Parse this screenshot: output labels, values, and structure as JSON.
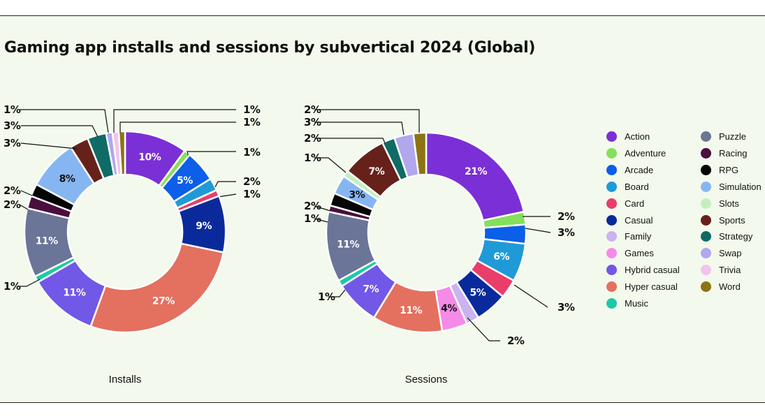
{
  "title": "Gaming app installs and sessions by subvertical 2024 (Global)",
  "legend": [
    {
      "name": "Action",
      "color": "#7b2fd6"
    },
    {
      "name": "Adventure",
      "color": "#84e05a"
    },
    {
      "name": "Arcade",
      "color": "#0b5fe8"
    },
    {
      "name": "Board",
      "color": "#1f9ad6"
    },
    {
      "name": "Card",
      "color": "#ea3d6a"
    },
    {
      "name": "Casual",
      "color": "#0a2a9c"
    },
    {
      "name": "Family",
      "color": "#c9b3f0"
    },
    {
      "name": "Games",
      "color": "#f58ae8"
    },
    {
      "name": "Hybrid casual",
      "color": "#7158e6"
    },
    {
      "name": "Hyper casual",
      "color": "#e4705f"
    },
    {
      "name": "Music",
      "color": "#1cc9a8"
    },
    {
      "name": "Puzzle",
      "color": "#6a7597"
    },
    {
      "name": "Racing",
      "color": "#4a0f3e"
    },
    {
      "name": "RPG",
      "color": "#050505"
    },
    {
      "name": "Simulation",
      "color": "#86b6f2"
    },
    {
      "name": "Slots",
      "color": "#c3efbf"
    },
    {
      "name": "Sports",
      "color": "#66211b"
    },
    {
      "name": "Strategy",
      "color": "#0f6b66"
    },
    {
      "name": "Swap",
      "color": "#b1a7ed"
    },
    {
      "name": "Trivia",
      "color": "#f3c2ee"
    },
    {
      "name": "Word",
      "color": "#8c7313"
    }
  ],
  "chart_data": [
    {
      "type": "pie",
      "caption": "Installs",
      "categories": [
        "Action",
        "Adventure",
        "Arcade",
        "Board",
        "Card",
        "Casual",
        "Hyper casual",
        "Hybrid casual",
        "Music",
        "Puzzle",
        "Racing",
        "RPG",
        "Simulation",
        "Sports",
        "Strategy",
        "Swap",
        "Trivia",
        "Word"
      ],
      "values": [
        10,
        1,
        5,
        2,
        1,
        9,
        27,
        11,
        1,
        11,
        2,
        2,
        8,
        3,
        3,
        1,
        1,
        1
      ],
      "labels": [
        "10%",
        "1%",
        "5%",
        "2%",
        "1%",
        "9%",
        "27%",
        "11%",
        "1%",
        "11%",
        "2%",
        "2%",
        "8%",
        "3%",
        "3%",
        "1%",
        "1%",
        "1%"
      ]
    },
    {
      "type": "pie",
      "caption": "Sessions",
      "categories": [
        "Action",
        "Adventure",
        "Arcade",
        "Board",
        "Card",
        "Casual",
        "Family",
        "Games",
        "Hyper casual",
        "Hybrid casual",
        "Music",
        "Puzzle",
        "Racing",
        "RPG",
        "Simulation",
        "Slots",
        "Sports",
        "Strategy",
        "Swap",
        "Word"
      ],
      "values": [
        21,
        2,
        3,
        6,
        3,
        5,
        2,
        4,
        11,
        7,
        1,
        11,
        1,
        2,
        3,
        1,
        7,
        2,
        3,
        2
      ],
      "labels": [
        "21%",
        "2%",
        "3%",
        "6%",
        "3%",
        "5%",
        "2%",
        "4%",
        "11%",
        "7%",
        "1%",
        "11%",
        "1%",
        "2%",
        "3%",
        "1%",
        "7%",
        "2%",
        "3%",
        "2%"
      ]
    }
  ]
}
